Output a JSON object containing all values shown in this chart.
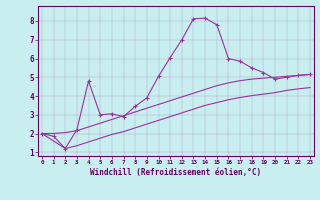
{
  "xlabel": "Windchill (Refroidissement éolien,°C)",
  "bg_color": "#c8eef0",
  "plot_bg": "#c8eef0",
  "line_color": "#993399",
  "spine_color": "#660066",
  "x_values": [
    0,
    1,
    2,
    3,
    4,
    5,
    6,
    7,
    8,
    9,
    10,
    11,
    12,
    13,
    14,
    15,
    16,
    17,
    18,
    19,
    20,
    21,
    22,
    23
  ],
  "y_main": [
    2.0,
    1.85,
    1.2,
    2.2,
    4.8,
    3.0,
    3.05,
    2.9,
    3.45,
    3.9,
    5.05,
    6.05,
    7.0,
    8.12,
    8.15,
    7.8,
    6.0,
    5.85,
    5.5,
    5.25,
    4.9,
    5.0,
    5.1,
    5.15
  ],
  "y_upper": [
    2.0,
    2.0,
    2.05,
    2.15,
    2.35,
    2.55,
    2.75,
    2.95,
    3.15,
    3.35,
    3.55,
    3.75,
    3.95,
    4.15,
    4.35,
    4.55,
    4.7,
    4.82,
    4.9,
    4.95,
    5.0,
    5.05,
    5.1,
    5.15
  ],
  "y_lower": [
    2.0,
    1.6,
    1.2,
    1.35,
    1.55,
    1.75,
    1.95,
    2.1,
    2.3,
    2.5,
    2.7,
    2.9,
    3.1,
    3.3,
    3.5,
    3.65,
    3.8,
    3.92,
    4.02,
    4.1,
    4.18,
    4.3,
    4.38,
    4.45
  ],
  "ylim": [
    0.8,
    8.8
  ],
  "xlim": [
    -0.3,
    23.3
  ],
  "yticks": [
    1,
    2,
    3,
    4,
    5,
    6,
    7,
    8
  ],
  "xtick_labels": [
    "0",
    "1",
    "2",
    "3",
    "4",
    "5",
    "6",
    "7",
    "8",
    "9",
    "10",
    "11",
    "12",
    "13",
    "14",
    "15",
    "16",
    "17",
    "18",
    "19",
    "20",
    "21",
    "22",
    "23"
  ]
}
